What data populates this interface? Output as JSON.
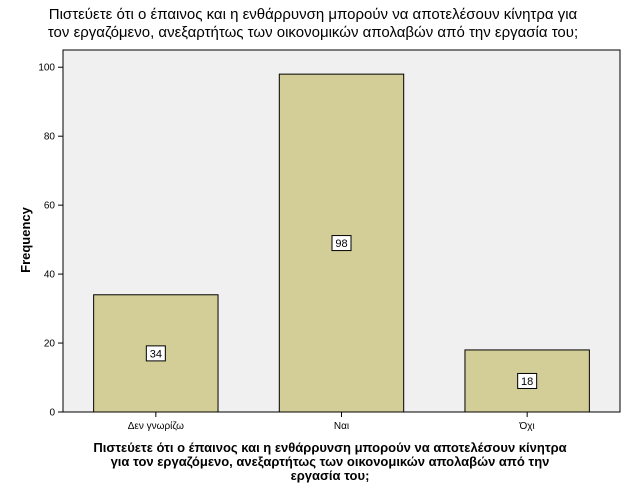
{
  "chart_data": {
    "type": "bar",
    "title": "Πιστεύετε ότι ο έπαινος και η ενθάρρυνση μπορούν να αποτελέσουν κίνητρα για\nτον εργαζόμενο, ανεξαρτήτως των οικονομικών απολαβών από την εργασία του;",
    "xlabel": "Πιστεύετε ότι ο έπαινος και η ενθάρρυνση μπορούν να αποτελέσουν κίνητρα\nγια τον εργαζόμενο, ανεξαρτήτως των οικονομικών απολαβών από την\nεργασία του;",
    "ylabel": "Frequency",
    "categories": [
      "Δεν γνωρίζω",
      "Ναι",
      "Όχι"
    ],
    "values": [
      34,
      98,
      18
    ],
    "ylim": [
      0,
      105
    ],
    "yticks": [
      0,
      20,
      40,
      60,
      80,
      100
    ],
    "grid": false,
    "colors": {
      "bar_fill": "#d3ce97",
      "bar_stroke": "#000000",
      "plot_background": "#f0f0f0"
    }
  }
}
